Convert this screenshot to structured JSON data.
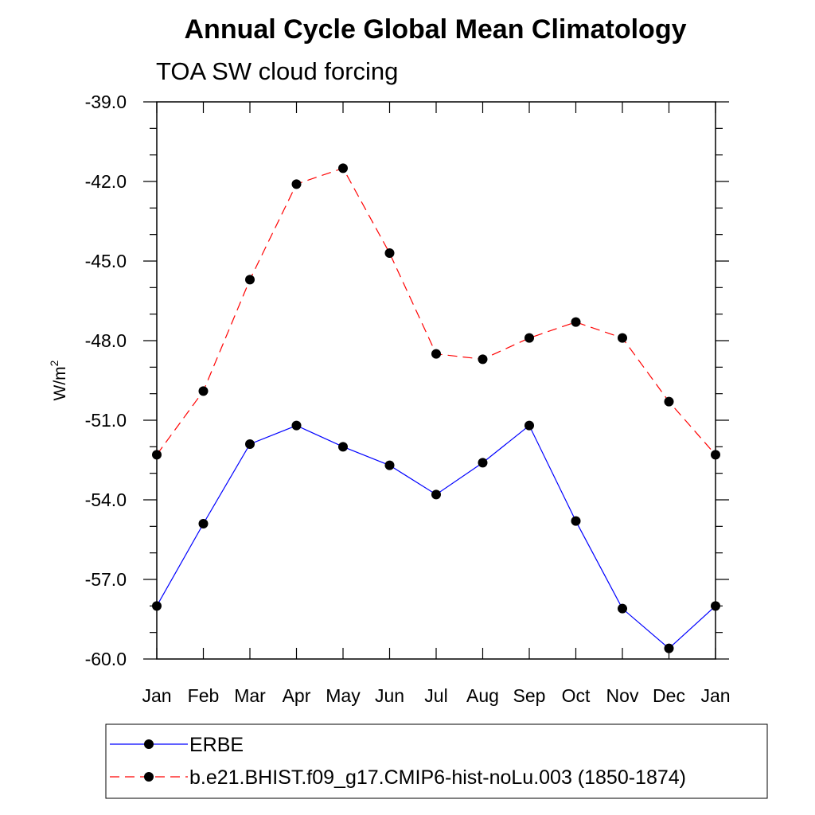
{
  "chart_data": {
    "type": "line",
    "title": "Annual Cycle Global Mean Climatology",
    "subtitle": "TOA SW cloud forcing",
    "ylabel": "W/m",
    "ylabel_sup": "2",
    "categories": [
      "Jan",
      "Feb",
      "Mar",
      "Apr",
      "May",
      "Jun",
      "Jul",
      "Aug",
      "Sep",
      "Oct",
      "Nov",
      "Dec",
      "Jan"
    ],
    "ylim": [
      -60.0,
      -39.0
    ],
    "yticks": [
      "-39.0",
      "-42.0",
      "-45.0",
      "-48.0",
      "-51.0",
      "-54.0",
      "-57.0",
      "-60.0"
    ],
    "ytick_values": [
      -39,
      -42,
      -45,
      -48,
      -51,
      -54,
      -57,
      -60
    ],
    "grid": false,
    "legend_position": "bottom",
    "series": [
      {
        "name": "ERBE",
        "color": "#0000ff",
        "dash": "solid",
        "marker": "circle",
        "values": [
          -58.0,
          -54.9,
          -51.9,
          -51.2,
          -52.0,
          -52.7,
          -53.8,
          -52.6,
          -51.2,
          -54.8,
          -58.1,
          -59.6,
          -58.0
        ]
      },
      {
        "name": "b.e21.BHIST.f09_g17.CMIP6-hist-noLu.003 (1850-1874)",
        "color": "#ff0000",
        "dash": "dashed",
        "marker": "circle",
        "values": [
          -52.3,
          -49.9,
          -45.7,
          -42.1,
          -41.5,
          -44.7,
          -48.5,
          -48.7,
          -47.9,
          -47.3,
          -47.9,
          -50.3,
          -52.3
        ]
      }
    ]
  }
}
